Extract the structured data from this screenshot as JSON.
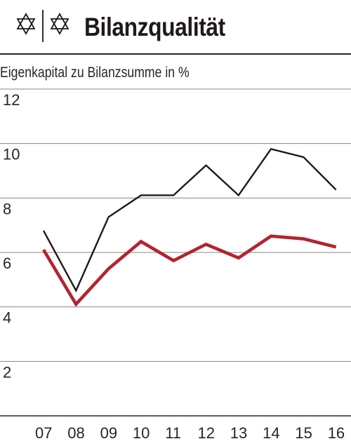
{
  "header": {
    "title": "Bilanzqualität",
    "logo_icon": "star-of-david-icon"
  },
  "chart_data": {
    "type": "line",
    "title": "Bilanzqualität",
    "ylabel": "Eigenkapital zu Bilanzsumme in %",
    "xlabel": "",
    "categories": [
      "07",
      "08",
      "09",
      "10",
      "11",
      "12",
      "13",
      "14",
      "15",
      "16"
    ],
    "ylim": [
      0,
      12
    ],
    "yticks": [
      2,
      4,
      6,
      8,
      10,
      12
    ],
    "grid": true,
    "legend": "none",
    "series": [
      {
        "color": "#1f1a17",
        "values": [
          6.8,
          4.6,
          7.3,
          8.1,
          8.1,
          9.2,
          8.1,
          9.8,
          9.5,
          8.3
        ]
      },
      {
        "color": "#b3232f",
        "values": [
          6.1,
          4.1,
          5.4,
          6.4,
          5.7,
          6.3,
          5.8,
          6.6,
          6.5,
          6.2
        ]
      }
    ]
  }
}
